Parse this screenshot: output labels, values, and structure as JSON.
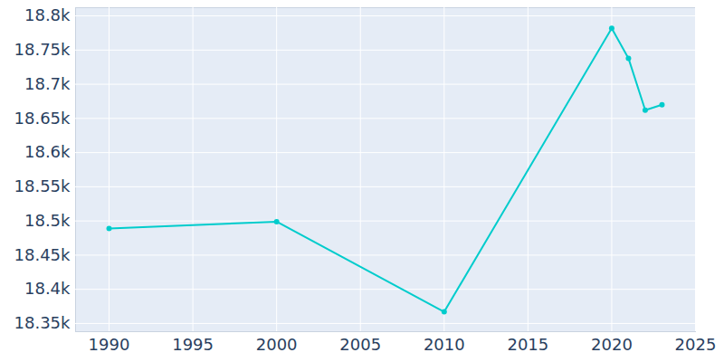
{
  "chart_data": {
    "type": "line",
    "x": [
      1990,
      2000,
      2010,
      2020,
      2021,
      2022,
      2023
    ],
    "values": [
      18489,
      18499,
      18367,
      18782,
      18738,
      18662,
      18670
    ],
    "color": "#00cccc",
    "marker": "circle",
    "xlim": [
      1988,
      2025
    ],
    "xticks": [
      1990,
      1995,
      2000,
      2005,
      2010,
      2015,
      2020,
      2025
    ],
    "ylim": [
      18338,
      18812
    ],
    "yticks": [
      {
        "value": 18350,
        "label": "18.35k"
      },
      {
        "value": 18400,
        "label": "18.4k"
      },
      {
        "value": 18450,
        "label": "18.45k"
      },
      {
        "value": 18500,
        "label": "18.5k"
      },
      {
        "value": 18550,
        "label": "18.55k"
      },
      {
        "value": 18600,
        "label": "18.6k"
      },
      {
        "value": 18650,
        "label": "18.65k"
      },
      {
        "value": 18700,
        "label": "18.7k"
      },
      {
        "value": 18750,
        "label": "18.75k"
      },
      {
        "value": 18800,
        "label": "18.8k"
      }
    ],
    "grid": true
  }
}
